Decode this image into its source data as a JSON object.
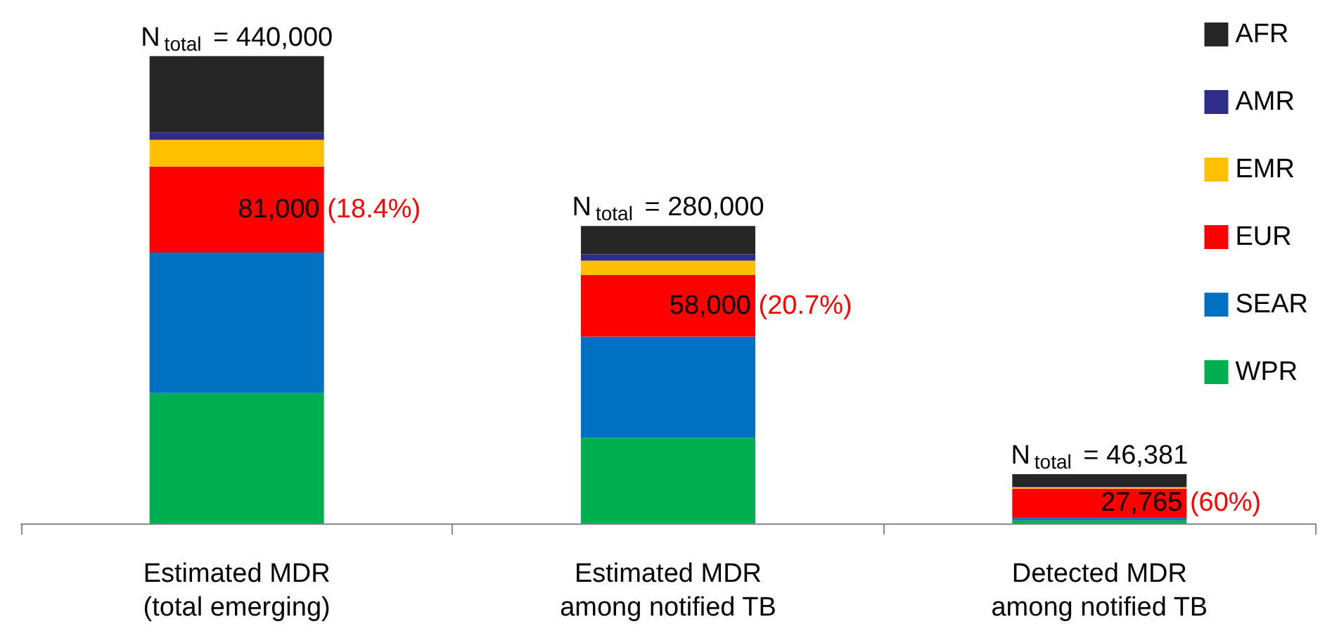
{
  "chart_data": {
    "type": "bar",
    "stacked": true,
    "categories": [
      "Estimated MDR\n(total emerging)",
      "Estimated MDR\namong notified TB",
      "Detected MDR\namong notified TB"
    ],
    "series": [
      {
        "name": "WPR",
        "color": "#00b050",
        "values": [
          122700,
          80700,
          2800
        ]
      },
      {
        "name": "SEAR",
        "color": "#0070c0",
        "values": [
          132300,
          95100,
          2300
        ]
      },
      {
        "name": "EUR",
        "color": "#ff0000",
        "values": [
          81000,
          58000,
          27765
        ],
        "value_labels": [
          "81,000 (18.4%)",
          "58,000 (20.7%)",
          "27,765 (60%)"
        ]
      },
      {
        "name": "EMR",
        "color": "#ffc000",
        "values": [
          25200,
          13600,
          1300
        ]
      },
      {
        "name": "AMR",
        "color": "#2e2e8a",
        "values": [
          7000,
          6000,
          300
        ]
      },
      {
        "name": "AFR",
        "color": "#262626",
        "values": [
          71800,
          26600,
          11916
        ]
      }
    ],
    "totals": [
      "N$_{total}$ = 440,000",
      "N$_{total}$ = 280,000",
      "N$_{total}$ = 46,381"
    ],
    "legend": "right"
  }
}
